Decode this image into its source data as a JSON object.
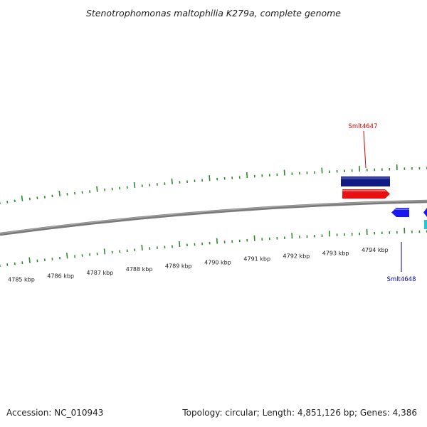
{
  "title": "Stenotrophomonas maltophilia K279a, complete genome",
  "footer": {
    "accession": "Accession: NC_010943",
    "topology": "Topology: circular; Length: 4,851,126 bp; Genes: 4,386"
  },
  "scale_labels": [
    "4785 kbp",
    "4786 kbp",
    "4787 kbp",
    "4788 kbp",
    "4789 kbp",
    "4790 kbp",
    "4791 kbp",
    "4792 kbp",
    "4793 kbp",
    "4794 kbp"
  ],
  "genes": [
    {
      "name": "Smlt4647",
      "strand": "forward",
      "color": "#dd0000"
    },
    {
      "name": "Smlt4648",
      "strand": "reverse",
      "color": "#0000aa"
    }
  ],
  "colors": {
    "backbone": "#808080",
    "ticks": "#2a8a2a",
    "gene_dark_blue": "#101a80",
    "gene_red": "#e81010",
    "gene_blue": "#1818ee",
    "gene_cyan": "#20c8d8"
  }
}
